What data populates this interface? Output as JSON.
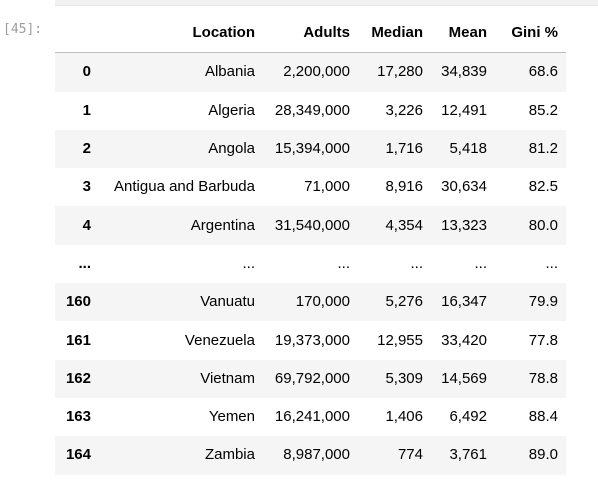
{
  "cell": {
    "prompt": "[45]:"
  },
  "table": {
    "index_header": "",
    "columns": [
      "Location",
      "Adults",
      "Median",
      "Mean",
      "Gini %"
    ],
    "rows": [
      {
        "index": "0",
        "cells": [
          "Albania",
          "2,200,000",
          "17,280",
          "34,839",
          "68.6"
        ]
      },
      {
        "index": "1",
        "cells": [
          "Algeria",
          "28,349,000",
          "3,226",
          "12,491",
          "85.2"
        ]
      },
      {
        "index": "2",
        "cells": [
          "Angola",
          "15,394,000",
          "1,716",
          "5,418",
          "81.2"
        ]
      },
      {
        "index": "3",
        "cells": [
          "Antigua and Barbuda",
          "71,000",
          "8,916",
          "30,634",
          "82.5"
        ]
      },
      {
        "index": "4",
        "cells": [
          "Argentina",
          "31,540,000",
          "4,354",
          "13,323",
          "80.0"
        ]
      },
      {
        "index": "...",
        "cells": [
          "...",
          "...",
          "...",
          "...",
          "..."
        ]
      },
      {
        "index": "160",
        "cells": [
          "Vanuatu",
          "170,000",
          "5,276",
          "16,347",
          "79.9"
        ]
      },
      {
        "index": "161",
        "cells": [
          "Venezuela",
          "19,373,000",
          "12,955",
          "33,420",
          "77.8"
        ]
      },
      {
        "index": "162",
        "cells": [
          "Vietnam",
          "69,792,000",
          "5,309",
          "14,569",
          "78.8"
        ]
      },
      {
        "index": "163",
        "cells": [
          "Yemen",
          "16,241,000",
          "1,406",
          "6,492",
          "88.4"
        ]
      },
      {
        "index": "164",
        "cells": [
          "Zambia",
          "8,987,000",
          "774",
          "3,761",
          "89.0"
        ]
      }
    ]
  }
}
